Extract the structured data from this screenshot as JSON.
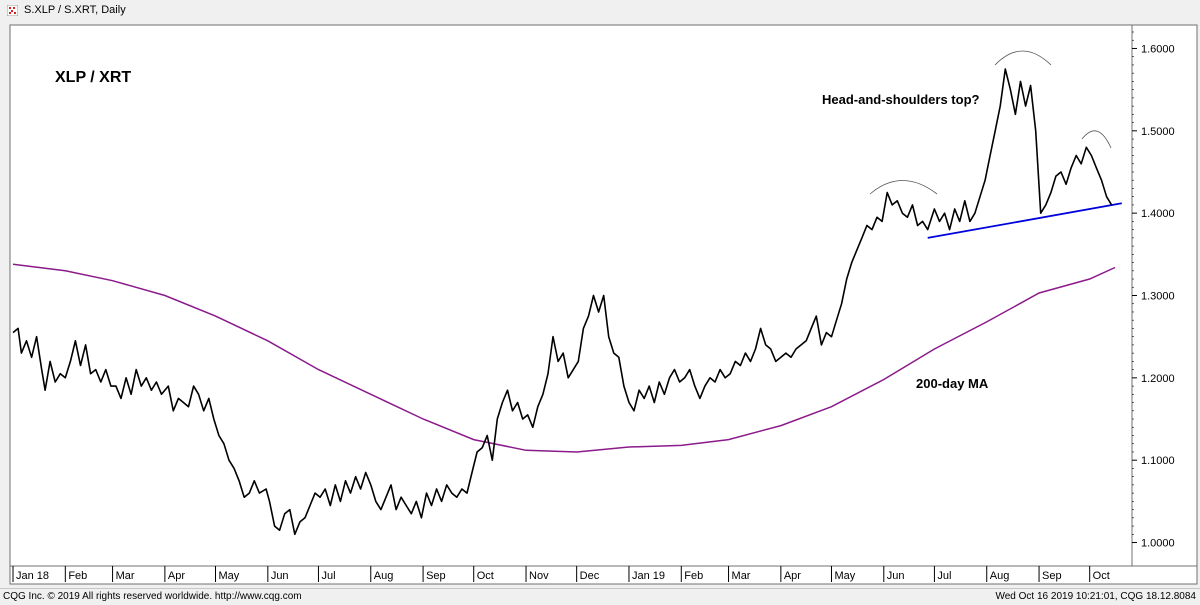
{
  "window": {
    "title": "S.XLP / S.XRT, Daily",
    "icon": "cqg-chart-icon"
  },
  "footer": {
    "left": "CQG Inc. © 2019 All rights reserved worldwide. http://www.cqg.com",
    "right": "Wed Oct 16 2019 10:21:01, CQG 18.12.8084"
  },
  "colors": {
    "price": "#000000",
    "ma": "#8b1a8b",
    "trendline": "#0000dd",
    "background": "#ffffff"
  },
  "chart_data": {
    "type": "line",
    "annotations": {
      "series_label": "XLP / XRT",
      "pattern": "Head-and-shoulders top?",
      "ma_label": "200-day MA"
    },
    "ylim": [
      0.98,
      1.62
    ],
    "y_ticks": [
      "1.6000",
      "1.5000",
      "1.4000",
      "1.3000",
      "1.2000",
      "1.1000",
      "1.0000"
    ],
    "y_tick_values": [
      1.6,
      1.5,
      1.4,
      1.3,
      1.2,
      1.1,
      1.0
    ],
    "x_range": [
      "2018-01-01",
      "2019-10-16"
    ],
    "x_ticks": [
      {
        "label": "Jan 18",
        "date": "2018-01-01"
      },
      {
        "label": "Feb",
        "date": "2018-02-01"
      },
      {
        "label": "Mar",
        "date": "2018-03-01"
      },
      {
        "label": "Apr",
        "date": "2018-04-01"
      },
      {
        "label": "May",
        "date": "2018-05-01"
      },
      {
        "label": "Jun",
        "date": "2018-06-01"
      },
      {
        "label": "Jul",
        "date": "2018-07-01"
      },
      {
        "label": "Aug",
        "date": "2018-08-01"
      },
      {
        "label": "Sep",
        "date": "2018-09-01"
      },
      {
        "label": "Oct",
        "date": "2018-10-01"
      },
      {
        "label": "Nov",
        "date": "2018-11-01"
      },
      {
        "label": "Dec",
        "date": "2018-12-01"
      },
      {
        "label": "Jan 19",
        "date": "2019-01-01"
      },
      {
        "label": "Feb",
        "date": "2019-02-01"
      },
      {
        "label": "Mar",
        "date": "2019-03-01"
      },
      {
        "label": "Apr",
        "date": "2019-04-01"
      },
      {
        "label": "May",
        "date": "2019-05-01"
      },
      {
        "label": "Jun",
        "date": "2019-06-01"
      },
      {
        "label": "Jul",
        "date": "2019-07-01"
      },
      {
        "label": "Aug",
        "date": "2019-08-01"
      },
      {
        "label": "Sep",
        "date": "2019-09-01"
      },
      {
        "label": "Oct",
        "date": "2019-10-01"
      }
    ],
    "grid": false,
    "series": [
      {
        "kind": "price",
        "points": [
          [
            "2018-01-01",
            1.255
          ],
          [
            "2018-01-04",
            1.26
          ],
          [
            "2018-01-06",
            1.23
          ],
          [
            "2018-01-09",
            1.245
          ],
          [
            "2018-01-12",
            1.225
          ],
          [
            "2018-01-15",
            1.25
          ],
          [
            "2018-01-18",
            1.21
          ],
          [
            "2018-01-20",
            1.185
          ],
          [
            "2018-01-23",
            1.22
          ],
          [
            "2018-01-26",
            1.195
          ],
          [
            "2018-01-29",
            1.205
          ],
          [
            "2018-02-01",
            1.2
          ],
          [
            "2018-02-04",
            1.22
          ],
          [
            "2018-02-07",
            1.245
          ],
          [
            "2018-02-10",
            1.215
          ],
          [
            "2018-02-13",
            1.24
          ],
          [
            "2018-02-16",
            1.205
          ],
          [
            "2018-02-19",
            1.21
          ],
          [
            "2018-02-22",
            1.195
          ],
          [
            "2018-02-25",
            1.21
          ],
          [
            "2018-02-28",
            1.19
          ],
          [
            "2018-03-03",
            1.19
          ],
          [
            "2018-03-06",
            1.175
          ],
          [
            "2018-03-09",
            1.2
          ],
          [
            "2018-03-12",
            1.18
          ],
          [
            "2018-03-15",
            1.21
          ],
          [
            "2018-03-18",
            1.19
          ],
          [
            "2018-03-21",
            1.2
          ],
          [
            "2018-03-24",
            1.185
          ],
          [
            "2018-03-27",
            1.195
          ],
          [
            "2018-03-30",
            1.18
          ],
          [
            "2018-04-03",
            1.19
          ],
          [
            "2018-04-06",
            1.16
          ],
          [
            "2018-04-09",
            1.175
          ],
          [
            "2018-04-12",
            1.17
          ],
          [
            "2018-04-15",
            1.165
          ],
          [
            "2018-04-18",
            1.19
          ],
          [
            "2018-04-21",
            1.18
          ],
          [
            "2018-04-24",
            1.16
          ],
          [
            "2018-04-27",
            1.175
          ],
          [
            "2018-04-30",
            1.15
          ],
          [
            "2018-05-03",
            1.13
          ],
          [
            "2018-05-06",
            1.12
          ],
          [
            "2018-05-09",
            1.1
          ],
          [
            "2018-05-12",
            1.09
          ],
          [
            "2018-05-15",
            1.075
          ],
          [
            "2018-05-18",
            1.055
          ],
          [
            "2018-05-21",
            1.06
          ],
          [
            "2018-05-24",
            1.075
          ],
          [
            "2018-05-27",
            1.06
          ],
          [
            "2018-05-31",
            1.065
          ],
          [
            "2018-06-02",
            1.05
          ],
          [
            "2018-06-05",
            1.02
          ],
          [
            "2018-06-08",
            1.015
          ],
          [
            "2018-06-11",
            1.035
          ],
          [
            "2018-06-14",
            1.04
          ],
          [
            "2018-06-17",
            1.01
          ],
          [
            "2018-06-20",
            1.025
          ],
          [
            "2018-06-23",
            1.03
          ],
          [
            "2018-06-26",
            1.045
          ],
          [
            "2018-06-29",
            1.06
          ],
          [
            "2018-07-02",
            1.055
          ],
          [
            "2018-07-05",
            1.065
          ],
          [
            "2018-07-08",
            1.045
          ],
          [
            "2018-07-11",
            1.07
          ],
          [
            "2018-07-14",
            1.05
          ],
          [
            "2018-07-17",
            1.075
          ],
          [
            "2018-07-20",
            1.06
          ],
          [
            "2018-07-23",
            1.08
          ],
          [
            "2018-07-26",
            1.065
          ],
          [
            "2018-07-29",
            1.085
          ],
          [
            "2018-08-01",
            1.07
          ],
          [
            "2018-08-04",
            1.05
          ],
          [
            "2018-08-07",
            1.04
          ],
          [
            "2018-08-10",
            1.055
          ],
          [
            "2018-08-13",
            1.07
          ],
          [
            "2018-08-16",
            1.04
          ],
          [
            "2018-08-19",
            1.055
          ],
          [
            "2018-08-22",
            1.045
          ],
          [
            "2018-08-25",
            1.035
          ],
          [
            "2018-08-28",
            1.05
          ],
          [
            "2018-08-31",
            1.03
          ],
          [
            "2018-09-03",
            1.06
          ],
          [
            "2018-09-06",
            1.045
          ],
          [
            "2018-09-09",
            1.065
          ],
          [
            "2018-09-12",
            1.05
          ],
          [
            "2018-09-15",
            1.07
          ],
          [
            "2018-09-18",
            1.06
          ],
          [
            "2018-09-21",
            1.055
          ],
          [
            "2018-09-24",
            1.065
          ],
          [
            "2018-09-27",
            1.06
          ],
          [
            "2018-09-30",
            1.085
          ],
          [
            "2018-10-03",
            1.11
          ],
          [
            "2018-10-06",
            1.115
          ],
          [
            "2018-10-09",
            1.13
          ],
          [
            "2018-10-12",
            1.1
          ],
          [
            "2018-10-15",
            1.15
          ],
          [
            "2018-10-18",
            1.17
          ],
          [
            "2018-10-21",
            1.185
          ],
          [
            "2018-10-24",
            1.16
          ],
          [
            "2018-10-27",
            1.17
          ],
          [
            "2018-10-30",
            1.15
          ],
          [
            "2018-11-02",
            1.155
          ],
          [
            "2018-11-05",
            1.14
          ],
          [
            "2018-11-08",
            1.165
          ],
          [
            "2018-11-11",
            1.18
          ],
          [
            "2018-11-14",
            1.205
          ],
          [
            "2018-11-17",
            1.25
          ],
          [
            "2018-11-20",
            1.22
          ],
          [
            "2018-11-23",
            1.23
          ],
          [
            "2018-11-26",
            1.2
          ],
          [
            "2018-11-29",
            1.21
          ],
          [
            "2018-12-02",
            1.22
          ],
          [
            "2018-12-05",
            1.26
          ],
          [
            "2018-12-08",
            1.275
          ],
          [
            "2018-12-11",
            1.3
          ],
          [
            "2018-12-14",
            1.28
          ],
          [
            "2018-12-17",
            1.3
          ],
          [
            "2018-12-20",
            1.25
          ],
          [
            "2018-12-23",
            1.23
          ],
          [
            "2018-12-26",
            1.225
          ],
          [
            "2018-12-29",
            1.19
          ],
          [
            "2019-01-01",
            1.17
          ],
          [
            "2019-01-04",
            1.16
          ],
          [
            "2019-01-07",
            1.185
          ],
          [
            "2019-01-10",
            1.175
          ],
          [
            "2019-01-13",
            1.19
          ],
          [
            "2019-01-16",
            1.17
          ],
          [
            "2019-01-19",
            1.195
          ],
          [
            "2019-01-22",
            1.18
          ],
          [
            "2019-01-25",
            1.2
          ],
          [
            "2019-01-28",
            1.21
          ],
          [
            "2019-01-31",
            1.195
          ],
          [
            "2019-02-03",
            1.2
          ],
          [
            "2019-02-06",
            1.21
          ],
          [
            "2019-02-09",
            1.19
          ],
          [
            "2019-02-12",
            1.175
          ],
          [
            "2019-02-15",
            1.19
          ],
          [
            "2019-02-18",
            1.2
          ],
          [
            "2019-02-21",
            1.195
          ],
          [
            "2019-02-24",
            1.21
          ],
          [
            "2019-02-27",
            1.2
          ],
          [
            "2019-03-02",
            1.205
          ],
          [
            "2019-03-05",
            1.22
          ],
          [
            "2019-03-08",
            1.215
          ],
          [
            "2019-03-11",
            1.23
          ],
          [
            "2019-03-14",
            1.22
          ],
          [
            "2019-03-17",
            1.235
          ],
          [
            "2019-03-20",
            1.26
          ],
          [
            "2019-03-23",
            1.24
          ],
          [
            "2019-03-26",
            1.235
          ],
          [
            "2019-03-29",
            1.22
          ],
          [
            "2019-04-01",
            1.225
          ],
          [
            "2019-04-04",
            1.23
          ],
          [
            "2019-04-07",
            1.225
          ],
          [
            "2019-04-10",
            1.235
          ],
          [
            "2019-04-13",
            1.24
          ],
          [
            "2019-04-16",
            1.245
          ],
          [
            "2019-04-19",
            1.26
          ],
          [
            "2019-04-22",
            1.275
          ],
          [
            "2019-04-25",
            1.24
          ],
          [
            "2019-04-28",
            1.255
          ],
          [
            "2019-05-01",
            1.25
          ],
          [
            "2019-05-04",
            1.27
          ],
          [
            "2019-05-07",
            1.29
          ],
          [
            "2019-05-10",
            1.32
          ],
          [
            "2019-05-13",
            1.34
          ],
          [
            "2019-05-16",
            1.355
          ],
          [
            "2019-05-19",
            1.37
          ],
          [
            "2019-05-22",
            1.385
          ],
          [
            "2019-05-25",
            1.38
          ],
          [
            "2019-05-28",
            1.395
          ],
          [
            "2019-05-31",
            1.39
          ],
          [
            "2019-06-03",
            1.425
          ],
          [
            "2019-06-06",
            1.41
          ],
          [
            "2019-06-09",
            1.415
          ],
          [
            "2019-06-12",
            1.4
          ],
          [
            "2019-06-15",
            1.395
          ],
          [
            "2019-06-18",
            1.41
          ],
          [
            "2019-06-21",
            1.385
          ],
          [
            "2019-06-24",
            1.39
          ],
          [
            "2019-06-27",
            1.38
          ],
          [
            "2019-07-01",
            1.405
          ],
          [
            "2019-07-04",
            1.39
          ],
          [
            "2019-07-07",
            1.4
          ],
          [
            "2019-07-10",
            1.38
          ],
          [
            "2019-07-13",
            1.405
          ],
          [
            "2019-07-16",
            1.39
          ],
          [
            "2019-07-19",
            1.415
          ],
          [
            "2019-07-22",
            1.39
          ],
          [
            "2019-07-25",
            1.4
          ],
          [
            "2019-07-28",
            1.42
          ],
          [
            "2019-07-31",
            1.44
          ],
          [
            "2019-08-03",
            1.47
          ],
          [
            "2019-08-06",
            1.5
          ],
          [
            "2019-08-09",
            1.53
          ],
          [
            "2019-08-12",
            1.575
          ],
          [
            "2019-08-15",
            1.55
          ],
          [
            "2019-08-18",
            1.52
          ],
          [
            "2019-08-21",
            1.56
          ],
          [
            "2019-08-24",
            1.53
          ],
          [
            "2019-08-27",
            1.555
          ],
          [
            "2019-08-30",
            1.5
          ],
          [
            "2019-09-02",
            1.4
          ],
          [
            "2019-09-05",
            1.41
          ],
          [
            "2019-09-08",
            1.425
          ],
          [
            "2019-09-11",
            1.445
          ],
          [
            "2019-09-14",
            1.45
          ],
          [
            "2019-09-17",
            1.435
          ],
          [
            "2019-09-20",
            1.455
          ],
          [
            "2019-09-23",
            1.47
          ],
          [
            "2019-09-26",
            1.46
          ],
          [
            "2019-09-29",
            1.48
          ],
          [
            "2019-10-02",
            1.47
          ],
          [
            "2019-10-05",
            1.455
          ],
          [
            "2019-10-08",
            1.44
          ],
          [
            "2019-10-11",
            1.42
          ],
          [
            "2019-10-14",
            1.41
          ]
        ]
      },
      {
        "kind": "ma",
        "points": [
          [
            "2018-01-01",
            1.338
          ],
          [
            "2018-02-01",
            1.33
          ],
          [
            "2018-03-01",
            1.318
          ],
          [
            "2018-04-01",
            1.3
          ],
          [
            "2018-05-01",
            1.275
          ],
          [
            "2018-06-01",
            1.245
          ],
          [
            "2018-07-01",
            1.21
          ],
          [
            "2018-08-01",
            1.18
          ],
          [
            "2018-09-01",
            1.15
          ],
          [
            "2018-10-01",
            1.125
          ],
          [
            "2018-11-01",
            1.112
          ],
          [
            "2018-12-01",
            1.11
          ],
          [
            "2019-01-01",
            1.116
          ],
          [
            "2019-02-01",
            1.118
          ],
          [
            "2019-03-01",
            1.125
          ],
          [
            "2019-04-01",
            1.142
          ],
          [
            "2019-05-01",
            1.165
          ],
          [
            "2019-06-01",
            1.198
          ],
          [
            "2019-07-01",
            1.235
          ],
          [
            "2019-08-01",
            1.268
          ],
          [
            "2019-09-01",
            1.303
          ],
          [
            "2019-10-01",
            1.32
          ],
          [
            "2019-10-16",
            1.334
          ]
        ]
      }
    ],
    "trendline": [
      [
        "2019-06-27",
        1.37
      ],
      [
        "2019-10-20",
        1.412
      ]
    ]
  }
}
